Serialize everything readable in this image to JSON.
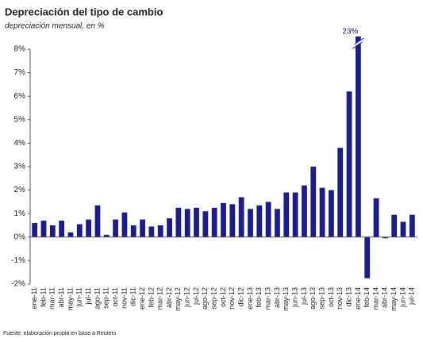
{
  "chart_data": {
    "type": "bar",
    "title": "Depreciación del tipo de cambio",
    "subtitle": "depreciación mensual, en %",
    "source": "Fuente: elaboración propia en base a Reuters",
    "categories": [
      "ene-11",
      "feb-11",
      "mar-11",
      "abr-11",
      "may-11",
      "jun-11",
      "jul-11",
      "ago-11",
      "sep-11",
      "oct-11",
      "nov-11",
      "dic-11",
      "ene-12",
      "feb-12",
      "mar-12",
      "abr-12",
      "may-12",
      "jun-12",
      "jul-12",
      "ago-12",
      "sep-12",
      "oct-12",
      "nov-12",
      "dic-12",
      "ene-13",
      "feb-13",
      "mar-13",
      "abr-13",
      "may-13",
      "jun-13",
      "jul-13",
      "ago-13",
      "sep-13",
      "oct-13",
      "nov-13",
      "dic-13",
      "ene-14",
      "feb-14",
      "mar-14",
      "abr-14",
      "may-14",
      "jun-14",
      "jul-14"
    ],
    "values": [
      0.6,
      0.7,
      0.5,
      0.7,
      0.2,
      0.55,
      0.75,
      1.35,
      0.1,
      0.75,
      1.05,
      0.5,
      0.75,
      0.45,
      0.5,
      0.8,
      1.25,
      1.2,
      1.25,
      1.1,
      1.25,
      1.45,
      1.4,
      1.7,
      1.2,
      1.35,
      1.5,
      1.2,
      1.9,
      1.9,
      2.2,
      3.0,
      2.1,
      2.0,
      3.8,
      6.2,
      23,
      -1.75,
      1.65,
      -0.05,
      0.95,
      0.65,
      0.95
    ],
    "value_labels": [
      null,
      null,
      null,
      null,
      null,
      null,
      null,
      null,
      null,
      null,
      null,
      null,
      null,
      null,
      null,
      null,
      null,
      null,
      null,
      null,
      null,
      null,
      null,
      null,
      null,
      null,
      null,
      null,
      null,
      null,
      null,
      null,
      null,
      null,
      null,
      null,
      "23%",
      null,
      null,
      null,
      null,
      null,
      null
    ],
    "color": "#1c1c8a",
    "ylim": [
      -2,
      8
    ],
    "yticks": [
      {
        "value": -2,
        "label": "-2%"
      },
      {
        "value": -1,
        "label": "-1%"
      },
      {
        "value": 0,
        "label": "0%"
      },
      {
        "value": 1,
        "label": "1%"
      },
      {
        "value": 2,
        "label": "2%"
      },
      {
        "value": 3,
        "label": "3%"
      },
      {
        "value": 4,
        "label": "4%"
      },
      {
        "value": 5,
        "label": "5%"
      },
      {
        "value": 6,
        "label": "6%"
      },
      {
        "value": 7,
        "label": "7%"
      },
      {
        "value": 8,
        "label": "8%"
      }
    ],
    "grid": false
  }
}
